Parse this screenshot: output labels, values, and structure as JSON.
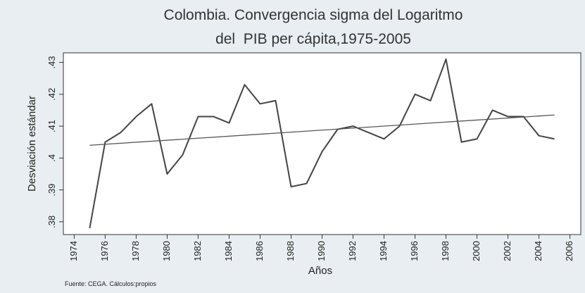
{
  "chart_data": {
    "type": "line",
    "title": [
      "Colombia. Convergencia sigma del Logaritmo",
      "del  PIB per cápita,1975-2005"
    ],
    "x_label": "Años",
    "y_label": "Desviación estándar",
    "note": "Fuente: CEGA. Cálculos:propios",
    "x": [
      1975,
      1976,
      1977,
      1978,
      1979,
      1980,
      1981,
      1982,
      1983,
      1984,
      1985,
      1986,
      1987,
      1988,
      1989,
      1990,
      1991,
      1992,
      1993,
      1994,
      1995,
      1996,
      1997,
      1998,
      1999,
      2000,
      2001,
      2002,
      2003,
      2004,
      2005
    ],
    "series": [
      {
        "color": "#444444",
        "values": [
          0.378,
          0.405,
          0.408,
          0.413,
          0.417,
          0.395,
          0.401,
          0.413,
          0.413,
          0.411,
          0.423,
          0.417,
          0.418,
          0.391,
          0.392,
          0.402,
          0.409,
          0.41,
          0.408,
          0.406,
          0.41,
          0.42,
          0.418,
          0.431,
          0.405,
          0.406,
          0.415,
          0.413,
          0.413,
          0.407,
          0.406
        ]
      }
    ],
    "trend": {
      "color": "#555555",
      "x": [
        1975,
        2005
      ],
      "values": [
        0.404,
        0.4135
      ]
    },
    "xlim": [
      1973.3,
      2006.7
    ],
    "ylim": [
      0.376,
      0.433
    ],
    "xticks": [
      1974,
      1976,
      1978,
      1980,
      1982,
      1984,
      1986,
      1988,
      1990,
      1992,
      1994,
      1996,
      1998,
      2000,
      2002,
      2004,
      2006
    ],
    "yticks": [
      {
        "value": 0.38,
        "label": ".38"
      },
      {
        "value": 0.39,
        "label": ".39"
      },
      {
        "value": 0.4,
        "label": ".4"
      },
      {
        "value": 0.41,
        "label": ".41"
      },
      {
        "value": 0.42,
        "label": ".42"
      },
      {
        "value": 0.43,
        "label": ".43"
      }
    ]
  }
}
